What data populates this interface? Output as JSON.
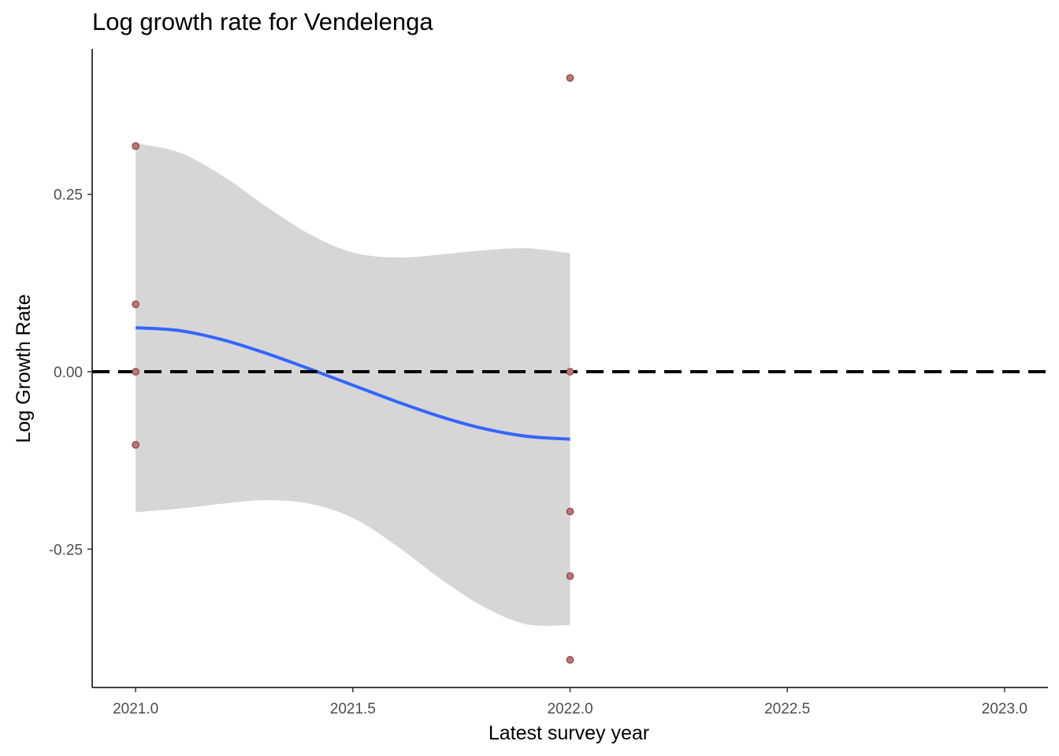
{
  "chart_data": {
    "type": "scatter",
    "title": "Log growth rate for Vendelenga",
    "xlabel": "Latest survey year",
    "ylabel": "Log Growth Rate",
    "xlim": [
      2020.9,
      2023.1
    ],
    "ylim": [
      -0.445,
      0.455
    ],
    "x_ticks": [
      {
        "value": 2021.0,
        "label": "2021.0"
      },
      {
        "value": 2021.5,
        "label": "2021.5"
      },
      {
        "value": 2022.0,
        "label": "2022.0"
      },
      {
        "value": 2022.5,
        "label": "2022.5"
      },
      {
        "value": 2023.0,
        "label": "2023.0"
      }
    ],
    "y_ticks": [
      {
        "value": 0.25,
        "label": "0.25"
      },
      {
        "value": 0.0,
        "label": "0.00"
      },
      {
        "value": -0.25,
        "label": "-0.25"
      }
    ],
    "points": [
      {
        "x": 2021.0,
        "y": 0.318
      },
      {
        "x": 2021.0,
        "y": 0.095
      },
      {
        "x": 2021.0,
        "y": 0.0
      },
      {
        "x": 2021.0,
        "y": -0.103
      },
      {
        "x": 2022.0,
        "y": 0.414
      },
      {
        "x": 2022.0,
        "y": 0.0
      },
      {
        "x": 2022.0,
        "y": -0.197
      },
      {
        "x": 2022.0,
        "y": -0.288
      },
      {
        "x": 2022.0,
        "y": -0.406
      }
    ],
    "smooth": {
      "x": [
        2021.0,
        2021.1,
        2021.2,
        2021.3,
        2021.4,
        2021.5,
        2021.6,
        2021.7,
        2021.8,
        2021.9,
        2022.0
      ],
      "y": [
        0.062,
        0.058,
        0.045,
        0.026,
        0.004,
        -0.019,
        -0.042,
        -0.063,
        -0.08,
        -0.091,
        -0.095
      ],
      "lower": [
        -0.198,
        -0.193,
        -0.186,
        -0.181,
        -0.186,
        -0.206,
        -0.245,
        -0.291,
        -0.331,
        -0.356,
        -0.357
      ],
      "upper": [
        0.322,
        0.309,
        0.276,
        0.233,
        0.194,
        0.168,
        0.161,
        0.165,
        0.171,
        0.174,
        0.167
      ]
    },
    "reference_line": {
      "y": 0.0,
      "style": "dashed"
    },
    "colors": {
      "points_fill": "#bc7474",
      "points_stroke": "#7a3a3a",
      "smooth_line": "#3366ff",
      "ribbon": "#d6d6d6",
      "reference_line": "#000000"
    },
    "grid": false,
    "legend": "none"
  }
}
